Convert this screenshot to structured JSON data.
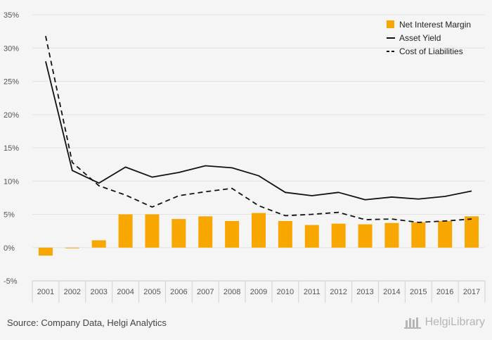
{
  "chart_data": {
    "type": "bar",
    "categories": [
      "2001",
      "2002",
      "2003",
      "2004",
      "2005",
      "2006",
      "2007",
      "2008",
      "2009",
      "2010",
      "2011",
      "2012",
      "2013",
      "2014",
      "2015",
      "2016",
      "2017"
    ],
    "series": [
      {
        "name": "Net Interest Margin",
        "type": "bar",
        "color": "#f7a700",
        "values": [
          -1.2,
          -0.1,
          1.1,
          5.0,
          5.0,
          4.3,
          4.7,
          4.0,
          5.2,
          4.0,
          3.4,
          3.6,
          3.5,
          3.7,
          3.8,
          4.0,
          4.7
        ]
      },
      {
        "name": "Asset Yield",
        "type": "line",
        "style": "solid",
        "color": "#111111",
        "values": [
          28.0,
          11.6,
          9.7,
          12.1,
          10.6,
          11.3,
          12.3,
          12.0,
          10.8,
          8.3,
          7.8,
          8.3,
          7.2,
          7.6,
          7.3,
          7.7,
          8.5
        ]
      },
      {
        "name": "Cost of Liabilities",
        "type": "line",
        "style": "dashed",
        "color": "#111111",
        "values": [
          31.8,
          12.8,
          9.3,
          7.9,
          6.1,
          7.8,
          8.4,
          8.9,
          6.3,
          4.8,
          5.0,
          5.3,
          4.2,
          4.3,
          3.8,
          4.0,
          4.3
        ]
      }
    ],
    "yticks": [
      -5,
      0,
      5,
      10,
      15,
      20,
      25,
      30,
      35
    ],
    "ytick_labels": [
      "-5%",
      "0%",
      "5%",
      "10%",
      "15%",
      "20%",
      "25%",
      "30%",
      "35%"
    ],
    "ylim": [
      -5,
      35
    ],
    "grid": true,
    "legend_position": "top-right"
  },
  "footer": {
    "source": "Source: Company Data, Helgi Analytics",
    "brand": "HelgiLibrary"
  }
}
